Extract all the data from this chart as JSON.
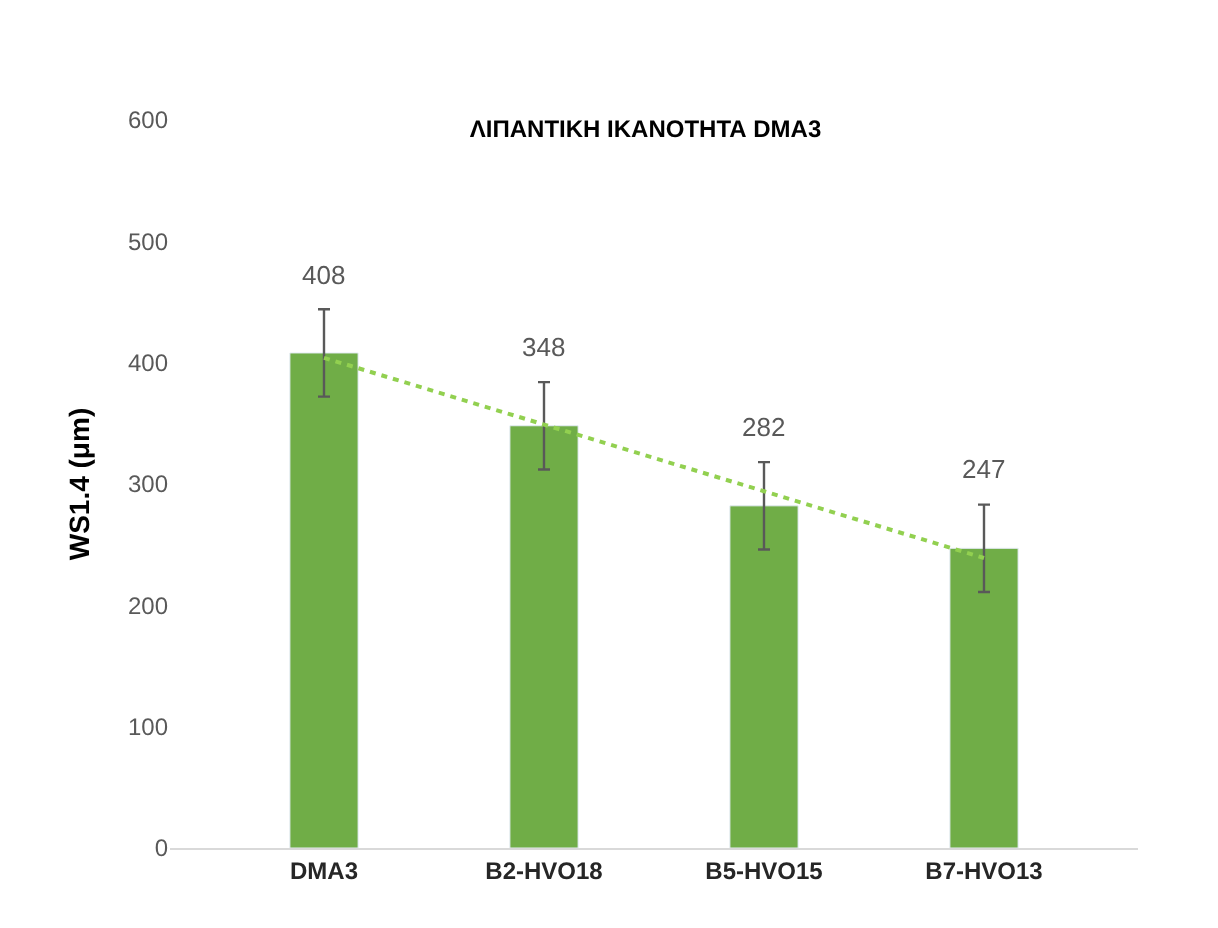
{
  "chart_data": {
    "type": "bar",
    "title": "ΛΙΠΑΝΤΙΚΗ ΙΚΑΝΟΤΗΤΑ DMA3",
    "ylabel": "WS1.4 (μm)",
    "categories": [
      "DMA3",
      "B2-HVO18",
      "B5-HVO15",
      "B7-HVO13"
    ],
    "series": [
      {
        "color": "#70ad47",
        "values": [
          408,
          348,
          282,
          247
        ],
        "errors": [
          36,
          36,
          36,
          36
        ],
        "value_labels": [
          "408",
          "348",
          "282",
          "247"
        ]
      },
      {
        "type": "line",
        "color": "#92d050",
        "values": [
          404,
          349,
          294,
          239
        ],
        "line_style": "dotted",
        "marker": "none"
      }
    ],
    "ylim": [
      0,
      600
    ],
    "yticks": [
      0,
      100,
      200,
      300,
      400,
      500,
      600
    ],
    "grid": false
  }
}
